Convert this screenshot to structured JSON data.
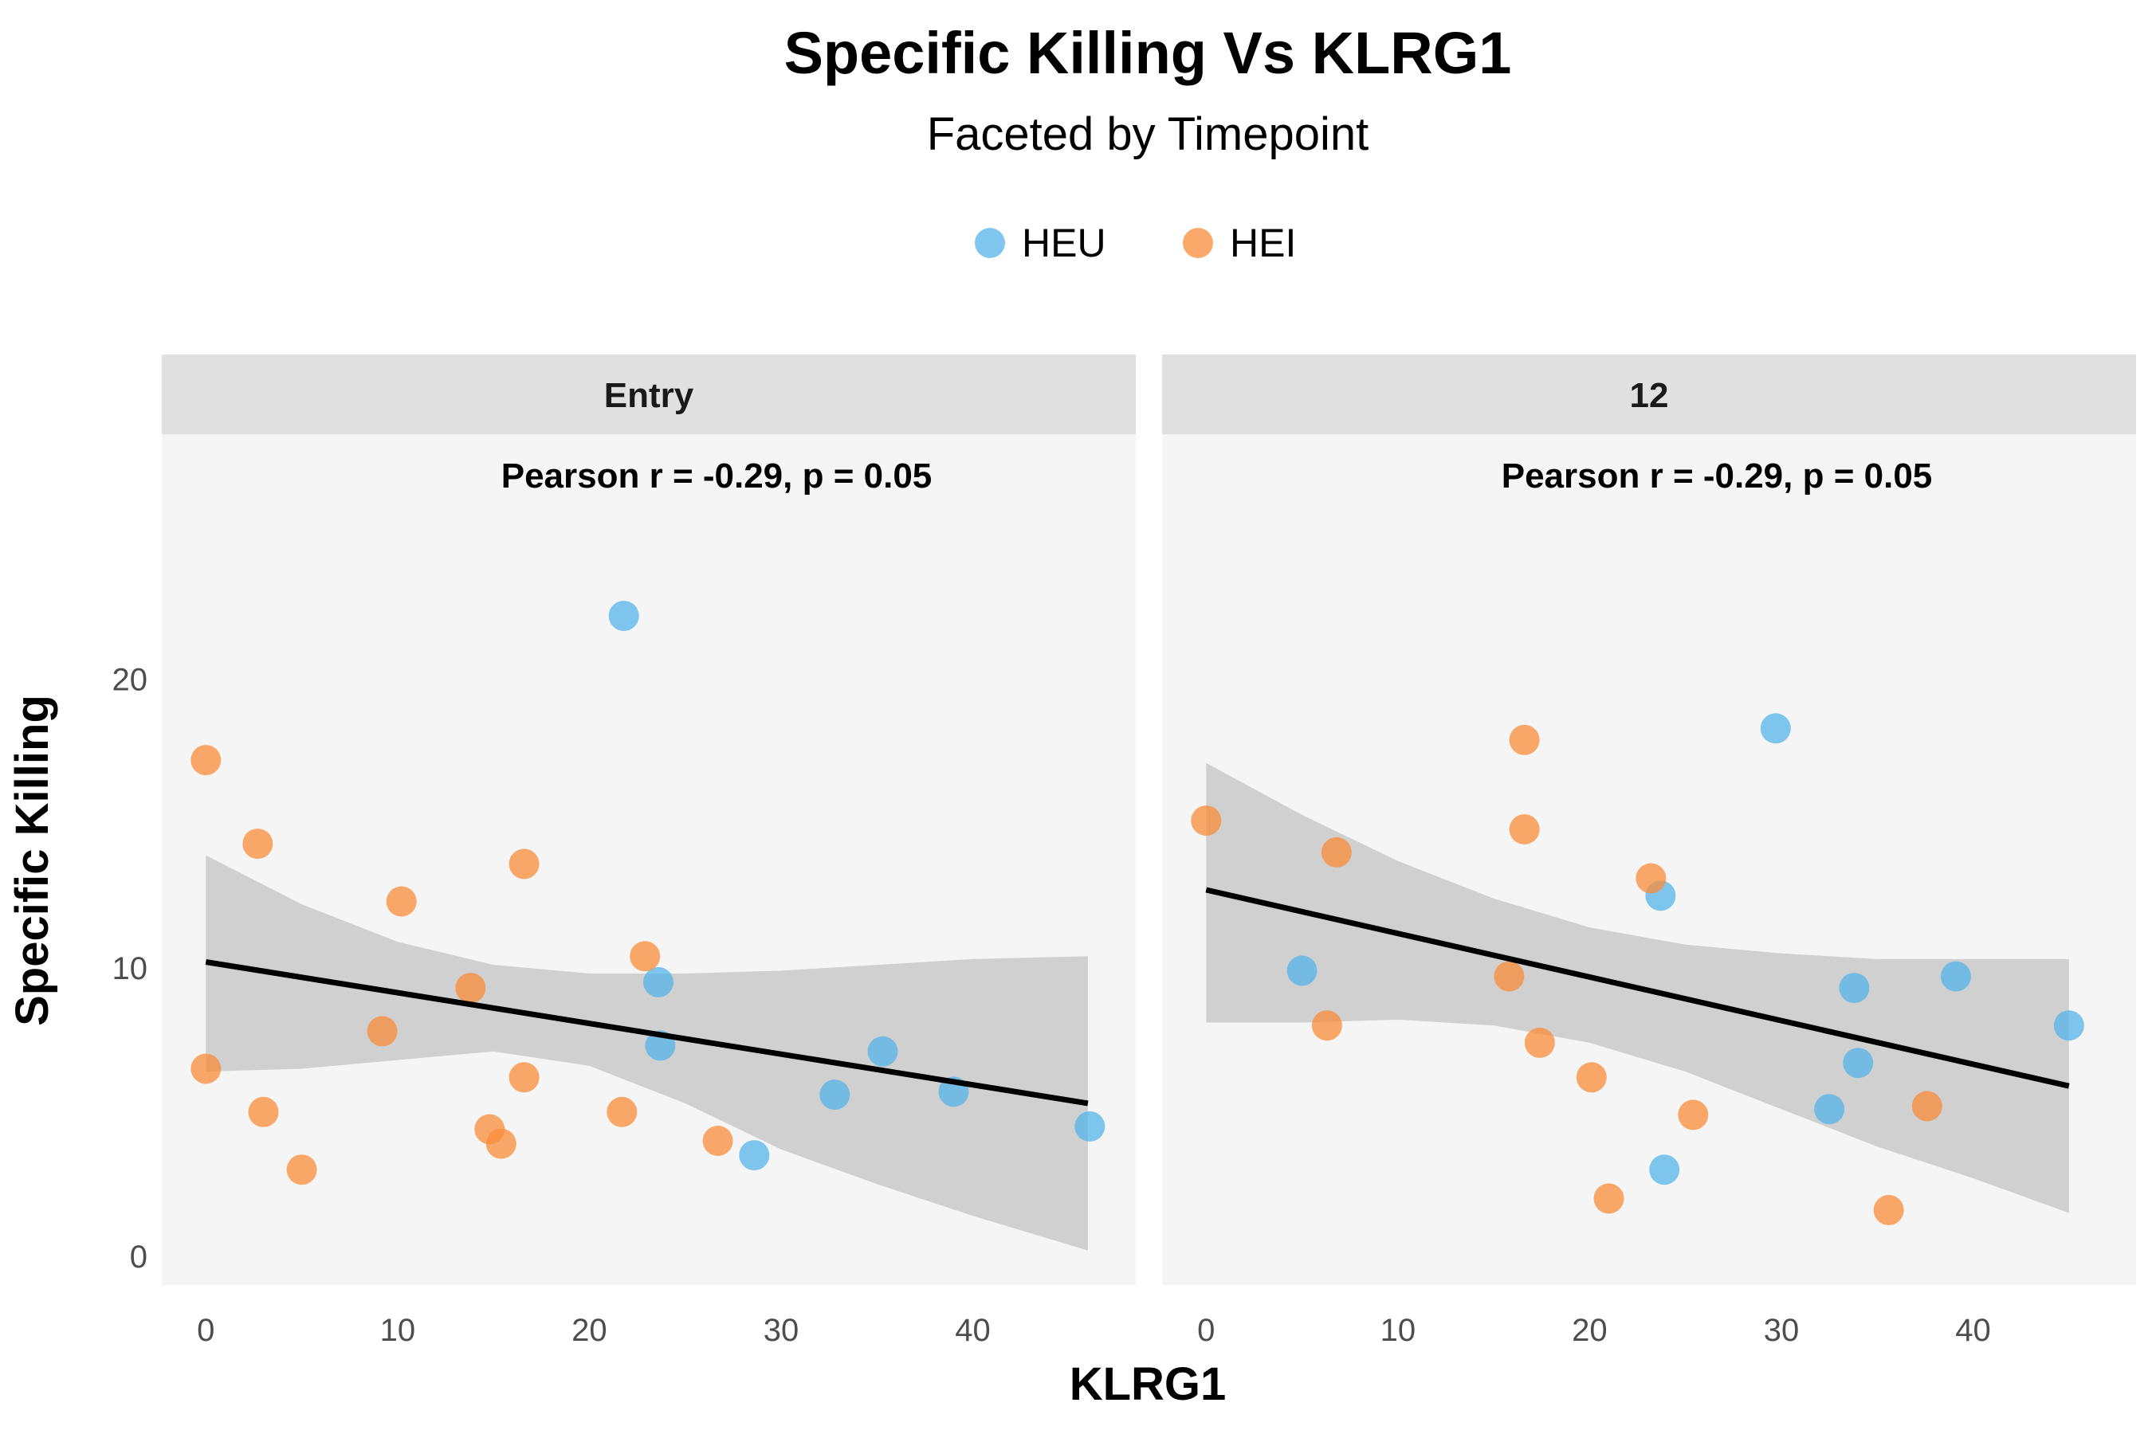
{
  "chart_data": {
    "type": "scatter",
    "title": "Specific Killing Vs KLRG1",
    "subtitle": "Faceted by Timepoint",
    "xlabel": "KLRG1",
    "ylabel": "Specific Killing",
    "legend_position": "top",
    "series_colors": {
      "HEU": "#56B4E9",
      "HEI": "#F98C3A"
    },
    "legend": [
      {
        "name": "HEU",
        "color": "#56B4E9"
      },
      {
        "name": "HEI",
        "color": "#F98C3A"
      }
    ],
    "xlim": [
      -2.3,
      48.5
    ],
    "ylim": [
      -1,
      28.5
    ],
    "x_ticks": [
      0,
      10,
      20,
      30,
      40
    ],
    "y_ticks": [
      0,
      10,
      20
    ],
    "facets": [
      {
        "label": "Entry",
        "annotation": "Pearson r = -0.29, p = 0.05",
        "fit": {
          "x": [
            0,
            46
          ],
          "y": [
            10.2,
            5.3
          ]
        },
        "band": {
          "x": [
            0,
            5,
            10,
            15,
            20,
            25,
            30,
            35,
            40,
            46
          ],
          "upper": [
            13.9,
            12.2,
            10.9,
            10.1,
            9.8,
            9.8,
            9.9,
            10.1,
            10.3,
            10.4
          ],
          "lower": [
            6.4,
            6.5,
            6.8,
            7.1,
            6.6,
            5.3,
            3.7,
            2.5,
            1.4,
            0.2
          ]
        },
        "points": [
          {
            "group": "HEU",
            "x": 21.8,
            "y": 22.2
          },
          {
            "group": "HEU",
            "x": 23.6,
            "y": 9.5
          },
          {
            "group": "HEU",
            "x": 23.7,
            "y": 7.3
          },
          {
            "group": "HEU",
            "x": 28.6,
            "y": 3.5
          },
          {
            "group": "HEU",
            "x": 32.8,
            "y": 5.6
          },
          {
            "group": "HEU",
            "x": 35.3,
            "y": 7.1
          },
          {
            "group": "HEU",
            "x": 39.0,
            "y": 5.7
          },
          {
            "group": "HEU",
            "x": 46.1,
            "y": 4.5
          },
          {
            "group": "HEI",
            "x": 0.0,
            "y": 17.2
          },
          {
            "group": "HEI",
            "x": 0.0,
            "y": 6.5
          },
          {
            "group": "HEI",
            "x": 2.7,
            "y": 14.3
          },
          {
            "group": "HEI",
            "x": 3.0,
            "y": 5.0
          },
          {
            "group": "HEI",
            "x": 5.0,
            "y": 3.0
          },
          {
            "group": "HEI",
            "x": 9.2,
            "y": 7.8
          },
          {
            "group": "HEI",
            "x": 10.2,
            "y": 12.3
          },
          {
            "group": "HEI",
            "x": 13.8,
            "y": 9.3
          },
          {
            "group": "HEI",
            "x": 14.8,
            "y": 4.4
          },
          {
            "group": "HEI",
            "x": 15.4,
            "y": 3.9
          },
          {
            "group": "HEI",
            "x": 16.6,
            "y": 13.6
          },
          {
            "group": "HEI",
            "x": 16.6,
            "y": 6.2
          },
          {
            "group": "HEI",
            "x": 21.7,
            "y": 5.0
          },
          {
            "group": "HEI",
            "x": 22.9,
            "y": 10.4
          },
          {
            "group": "HEI",
            "x": 26.7,
            "y": 4.0
          }
        ]
      },
      {
        "label": "12",
        "annotation": "Pearson r = -0.29, p = 0.05",
        "fit": {
          "x": [
            0,
            45
          ],
          "y": [
            12.7,
            5.9
          ]
        },
        "band": {
          "x": [
            0,
            5,
            10,
            15,
            20,
            25,
            30,
            35,
            40,
            45
          ],
          "upper": [
            17.1,
            15.3,
            13.7,
            12.4,
            11.4,
            10.8,
            10.5,
            10.3,
            10.3,
            10.3
          ],
          "lower": [
            8.1,
            8.1,
            8.2,
            8.0,
            7.4,
            6.4,
            5.1,
            3.8,
            2.7,
            1.5
          ]
        },
        "points": [
          {
            "group": "HEU",
            "x": 5.0,
            "y": 9.9
          },
          {
            "group": "HEU",
            "x": 23.7,
            "y": 12.5
          },
          {
            "group": "HEU",
            "x": 23.9,
            "y": 3.0
          },
          {
            "group": "HEU",
            "x": 29.7,
            "y": 18.3
          },
          {
            "group": "HEU",
            "x": 32.5,
            "y": 5.1
          },
          {
            "group": "HEU",
            "x": 33.8,
            "y": 9.3
          },
          {
            "group": "HEU",
            "x": 34.0,
            "y": 6.7
          },
          {
            "group": "HEU",
            "x": 39.1,
            "y": 9.7
          },
          {
            "group": "HEU",
            "x": 45.0,
            "y": 8.0
          },
          {
            "group": "HEI",
            "x": 0.0,
            "y": 15.1
          },
          {
            "group": "HEI",
            "x": 6.3,
            "y": 8.0
          },
          {
            "group": "HEI",
            "x": 6.8,
            "y": 14.0
          },
          {
            "group": "HEI",
            "x": 15.8,
            "y": 9.7
          },
          {
            "group": "HEI",
            "x": 16.6,
            "y": 17.9
          },
          {
            "group": "HEI",
            "x": 16.6,
            "y": 14.8
          },
          {
            "group": "HEI",
            "x": 17.4,
            "y": 7.4
          },
          {
            "group": "HEI",
            "x": 20.1,
            "y": 6.2
          },
          {
            "group": "HEI",
            "x": 21.0,
            "y": 2.0
          },
          {
            "group": "HEI",
            "x": 23.2,
            "y": 13.1
          },
          {
            "group": "HEI",
            "x": 25.4,
            "y": 4.9
          },
          {
            "group": "HEI",
            "x": 35.6,
            "y": 1.6
          },
          {
            "group": "HEI",
            "x": 37.6,
            "y": 5.2
          }
        ]
      }
    ]
  }
}
